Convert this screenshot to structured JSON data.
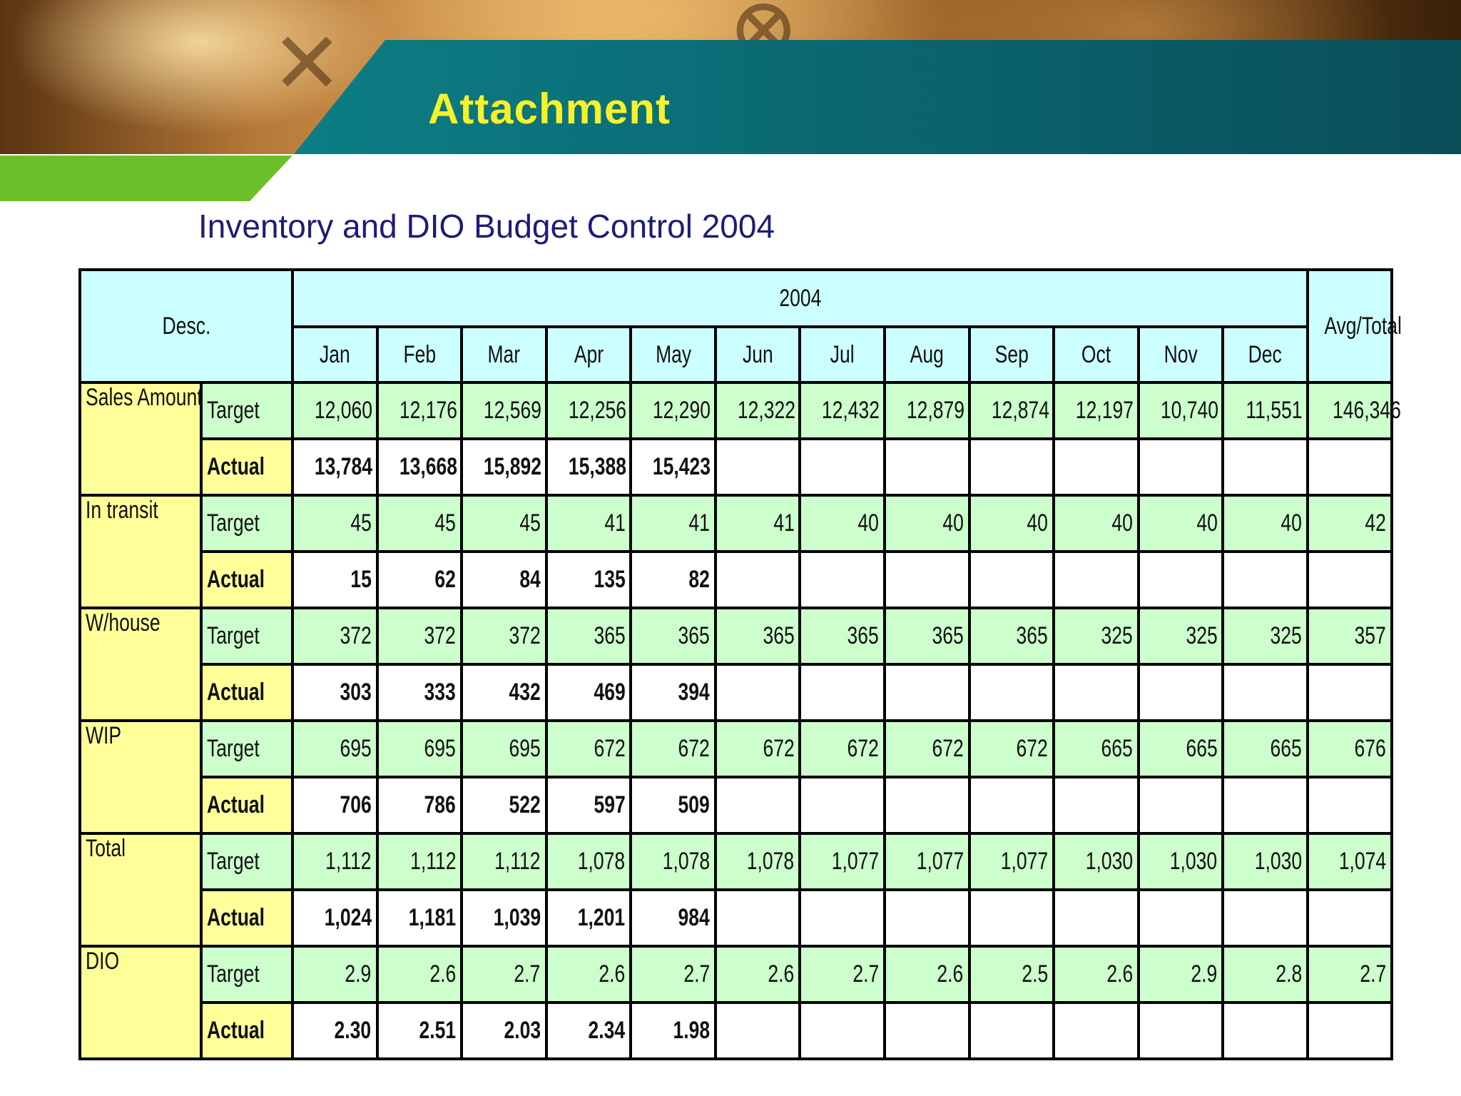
{
  "header": {
    "title": "Attachment"
  },
  "subtitle": "Inventory and DIO Budget Control 2004",
  "table": {
    "desc_header": "Desc.",
    "year_header": "2004",
    "avg_header": "Avg/Total",
    "months": [
      "Jan",
      "Feb",
      "Mar",
      "Apr",
      "May",
      "Jun",
      "Jul",
      "Aug",
      "Sep",
      "Oct",
      "Nov",
      "Dec"
    ],
    "groups": [
      {
        "name": "Sales Amount",
        "target_label": "Target",
        "actual_label": "Actual",
        "target": [
          "12,060",
          "12,176",
          "12,569",
          "12,256",
          "12,290",
          "12,322",
          "12,432",
          "12,879",
          "12,874",
          "12,197",
          "10,740",
          "11,551",
          "146,346"
        ],
        "actual": [
          "13,784",
          "13,668",
          "15,892",
          "15,388",
          "15,423",
          "",
          "",
          "",
          "",
          "",
          "",
          "",
          ""
        ]
      },
      {
        "name": "In transit",
        "target_label": "Target",
        "actual_label": "Actual",
        "target": [
          "45",
          "45",
          "45",
          "41",
          "41",
          "41",
          "40",
          "40",
          "40",
          "40",
          "40",
          "40",
          "42"
        ],
        "actual": [
          "15",
          "62",
          "84",
          "135",
          "82",
          "",
          "",
          "",
          "",
          "",
          "",
          "",
          ""
        ]
      },
      {
        "name": "W/house",
        "target_label": "Target",
        "actual_label": "Actual",
        "target": [
          "372",
          "372",
          "372",
          "365",
          "365",
          "365",
          "365",
          "365",
          "365",
          "325",
          "325",
          "325",
          "357"
        ],
        "actual": [
          "303",
          "333",
          "432",
          "469",
          "394",
          "",
          "",
          "",
          "",
          "",
          "",
          "",
          ""
        ]
      },
      {
        "name": "WIP",
        "target_label": "Target",
        "actual_label": "Actual",
        "target": [
          "695",
          "695",
          "695",
          "672",
          "672",
          "672",
          "672",
          "672",
          "672",
          "665",
          "665",
          "665",
          "676"
        ],
        "actual": [
          "706",
          "786",
          "522",
          "597",
          "509",
          "",
          "",
          "",
          "",
          "",
          "",
          "",
          ""
        ]
      },
      {
        "name": "Total",
        "target_label": "Target",
        "actual_label": "Actual",
        "target": [
          "1,112",
          "1,112",
          "1,112",
          "1,078",
          "1,078",
          "1,078",
          "1,077",
          "1,077",
          "1,077",
          "1,030",
          "1,030",
          "1,030",
          "1,074"
        ],
        "actual": [
          "1,024",
          "1,181",
          "1,039",
          "1,201",
          "984",
          "",
          "",
          "",
          "",
          "",
          "",
          "",
          ""
        ]
      },
      {
        "name": "DIO",
        "target_label": "Target",
        "actual_label": "Actual",
        "target": [
          "2.9",
          "2.6",
          "2.7",
          "2.6",
          "2.7",
          "2.6",
          "2.7",
          "2.6",
          "2.5",
          "2.6",
          "2.9",
          "2.8",
          "2.7"
        ],
        "actual": [
          "2.30",
          "2.51",
          "2.03",
          "2.34",
          "1.98",
          "",
          "",
          "",
          "",
          "",
          "",
          "",
          ""
        ]
      }
    ]
  }
}
